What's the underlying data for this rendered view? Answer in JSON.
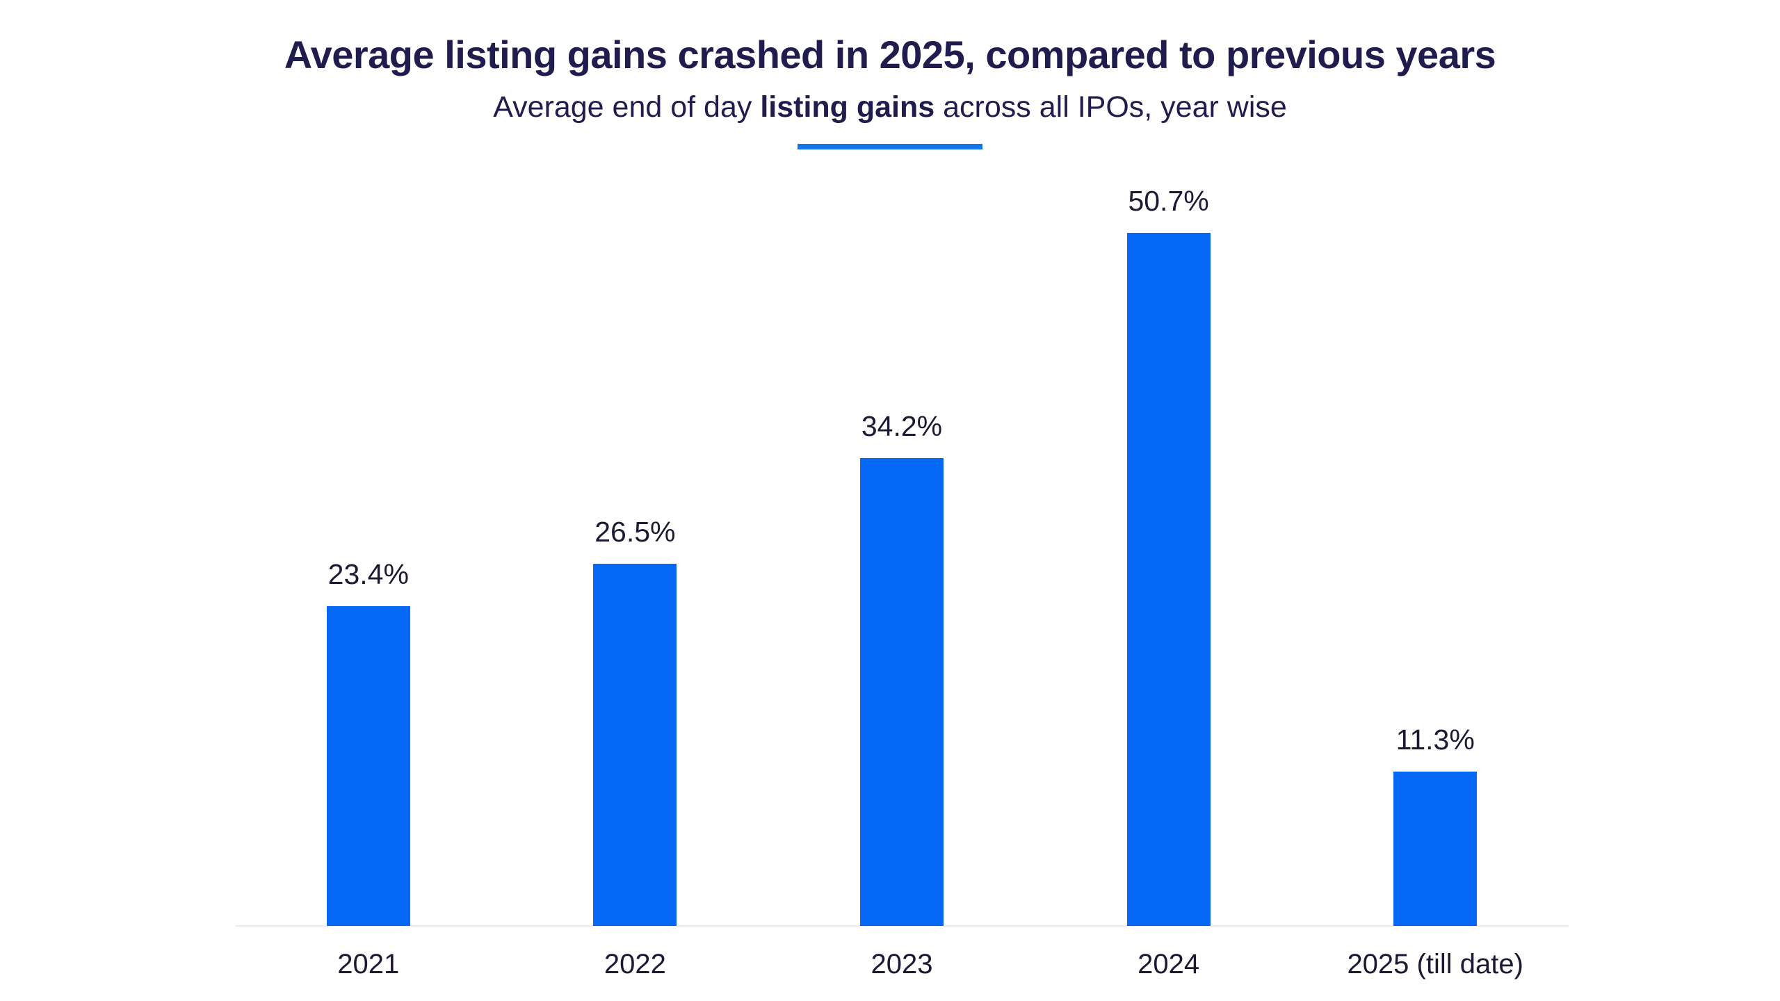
{
  "page": {
    "background": "#ffffff"
  },
  "header": {
    "title": "Average listing gains crashed in 2025, compared to previous years",
    "subtitle": {
      "prefix": "Average end of day ",
      "bold": "listing gains",
      "suffix": " across all IPOs, year wise"
    }
  },
  "colors": {
    "bar_blue": "#0569f6",
    "underline_blue": "#1276e9",
    "title_navy": "#201d4e",
    "label_navy": "#1a1a33",
    "axis_line_gray": "#ececec"
  },
  "chart_data": {
    "type": "bar",
    "title": "Average listing gains crashed in 2025, compared to previous years",
    "subtitle": "Average end of day listing gains across all IPOs, year wise",
    "categories": [
      "2021",
      "2022",
      "2023",
      "2024",
      "2025 (till date)"
    ],
    "values": [
      23.4,
      26.5,
      34.2,
      50.7,
      11.3
    ],
    "value_labels": [
      "23.4%",
      "26.5%",
      "34.2%",
      "50.7%",
      "11.3%"
    ],
    "xlabel": "",
    "ylabel": "",
    "ylim": [
      0,
      55
    ],
    "grid": false,
    "legend": false,
    "y_axis_visible": false,
    "data_labels_position": "above bars",
    "bar_color": "#0569f6"
  }
}
